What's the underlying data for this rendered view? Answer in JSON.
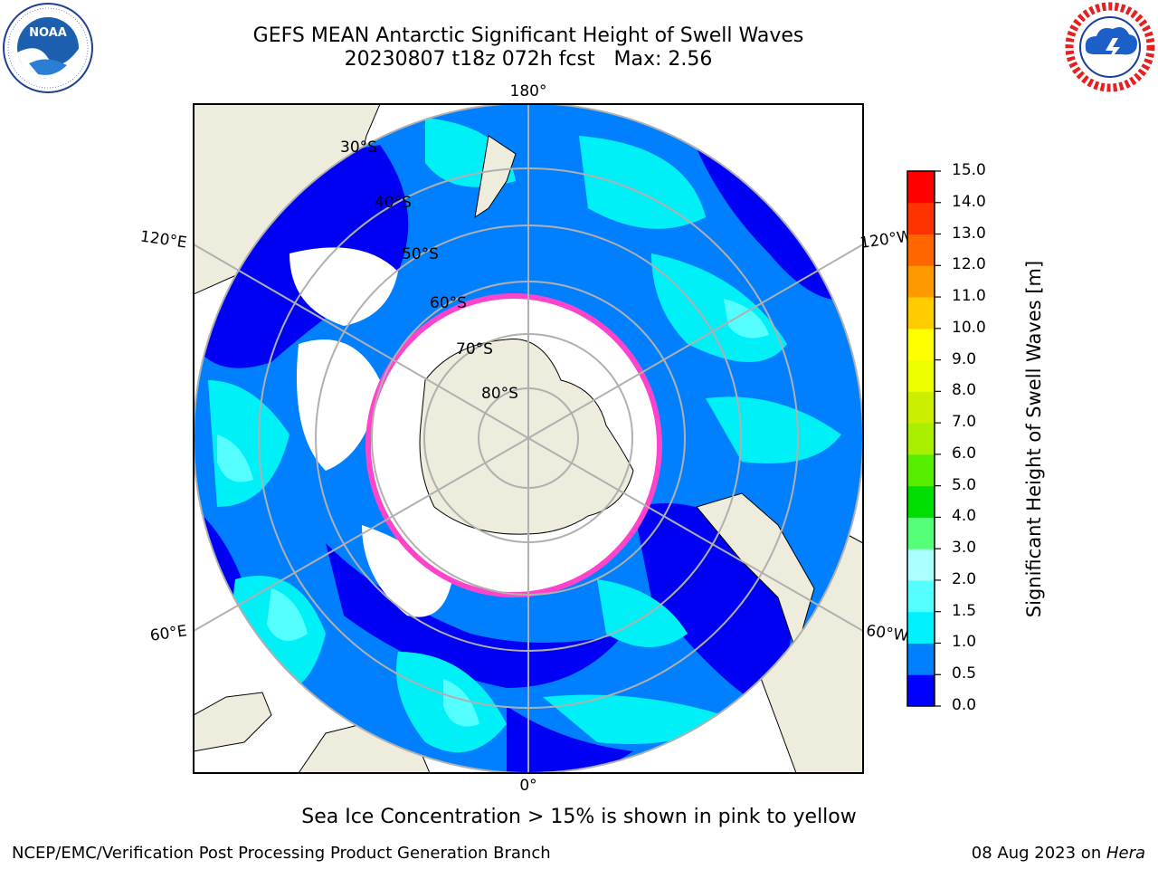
{
  "header": {
    "title_line1": "GEFS MEAN Antarctic Significant Height of Swell Waves",
    "title_line2": "20230807 t18z 072h fcst   Max: 2.56"
  },
  "logos": {
    "left": {
      "name": "noaa-logo",
      "text": "NOAA",
      "ring_text": "NATIONAL OCEANIC AND ATMOSPHERIC ADMINISTRATION · U.S. DEPARTMENT OF COMMERCE"
    },
    "right": {
      "name": "nws-logo",
      "ring_text": "NATIONAL WEATHER SERVICE"
    }
  },
  "map": {
    "projection": "south-polar-stereographic",
    "longitude_labels": [
      "180°",
      "120°E",
      "120°W",
      "60°E",
      "60°W",
      "0°"
    ],
    "latitude_labels": [
      "30°S",
      "40°S",
      "50°S",
      "60°S",
      "70°S",
      "80°S"
    ],
    "colors": {
      "land": "#eeecdc",
      "ice": "#ffffff",
      "ocean_dark": "#0000f5",
      "ocean_mid": "#0080ff",
      "ocean_cyan": "#00f0f8",
      "ocean_light": "#55ffff",
      "ice_edge": "#ff44cc",
      "grid": "#b0b0b0"
    }
  },
  "colorbar": {
    "label": "Significant Height of Swell Waves [m]",
    "ticks": [
      "0.0",
      "0.5",
      "1.0",
      "1.5",
      "2.0",
      "3.0",
      "4.0",
      "5.0",
      "6.0",
      "7.0",
      "8.0",
      "9.0",
      "10.0",
      "11.0",
      "12.0",
      "13.0",
      "14.0",
      "15.0"
    ],
    "colors": [
      "#0000ff",
      "#0080ff",
      "#00f0ff",
      "#55ffff",
      "#aaffff",
      "#55ff77",
      "#00dd00",
      "#55ee00",
      "#aaee00",
      "#ccee00",
      "#eeff00",
      "#ffff00",
      "#ffcc00",
      "#ff9900",
      "#ff6600",
      "#ff3300",
      "#ff0000"
    ]
  },
  "note": "Sea Ice Concentration > 15% is shown in pink to yellow",
  "footer": {
    "left": "NCEP/EMC/Verification Post Processing Product Generation Branch",
    "right_prefix": "08 Aug 2023 on ",
    "right_italic": "Hera"
  }
}
